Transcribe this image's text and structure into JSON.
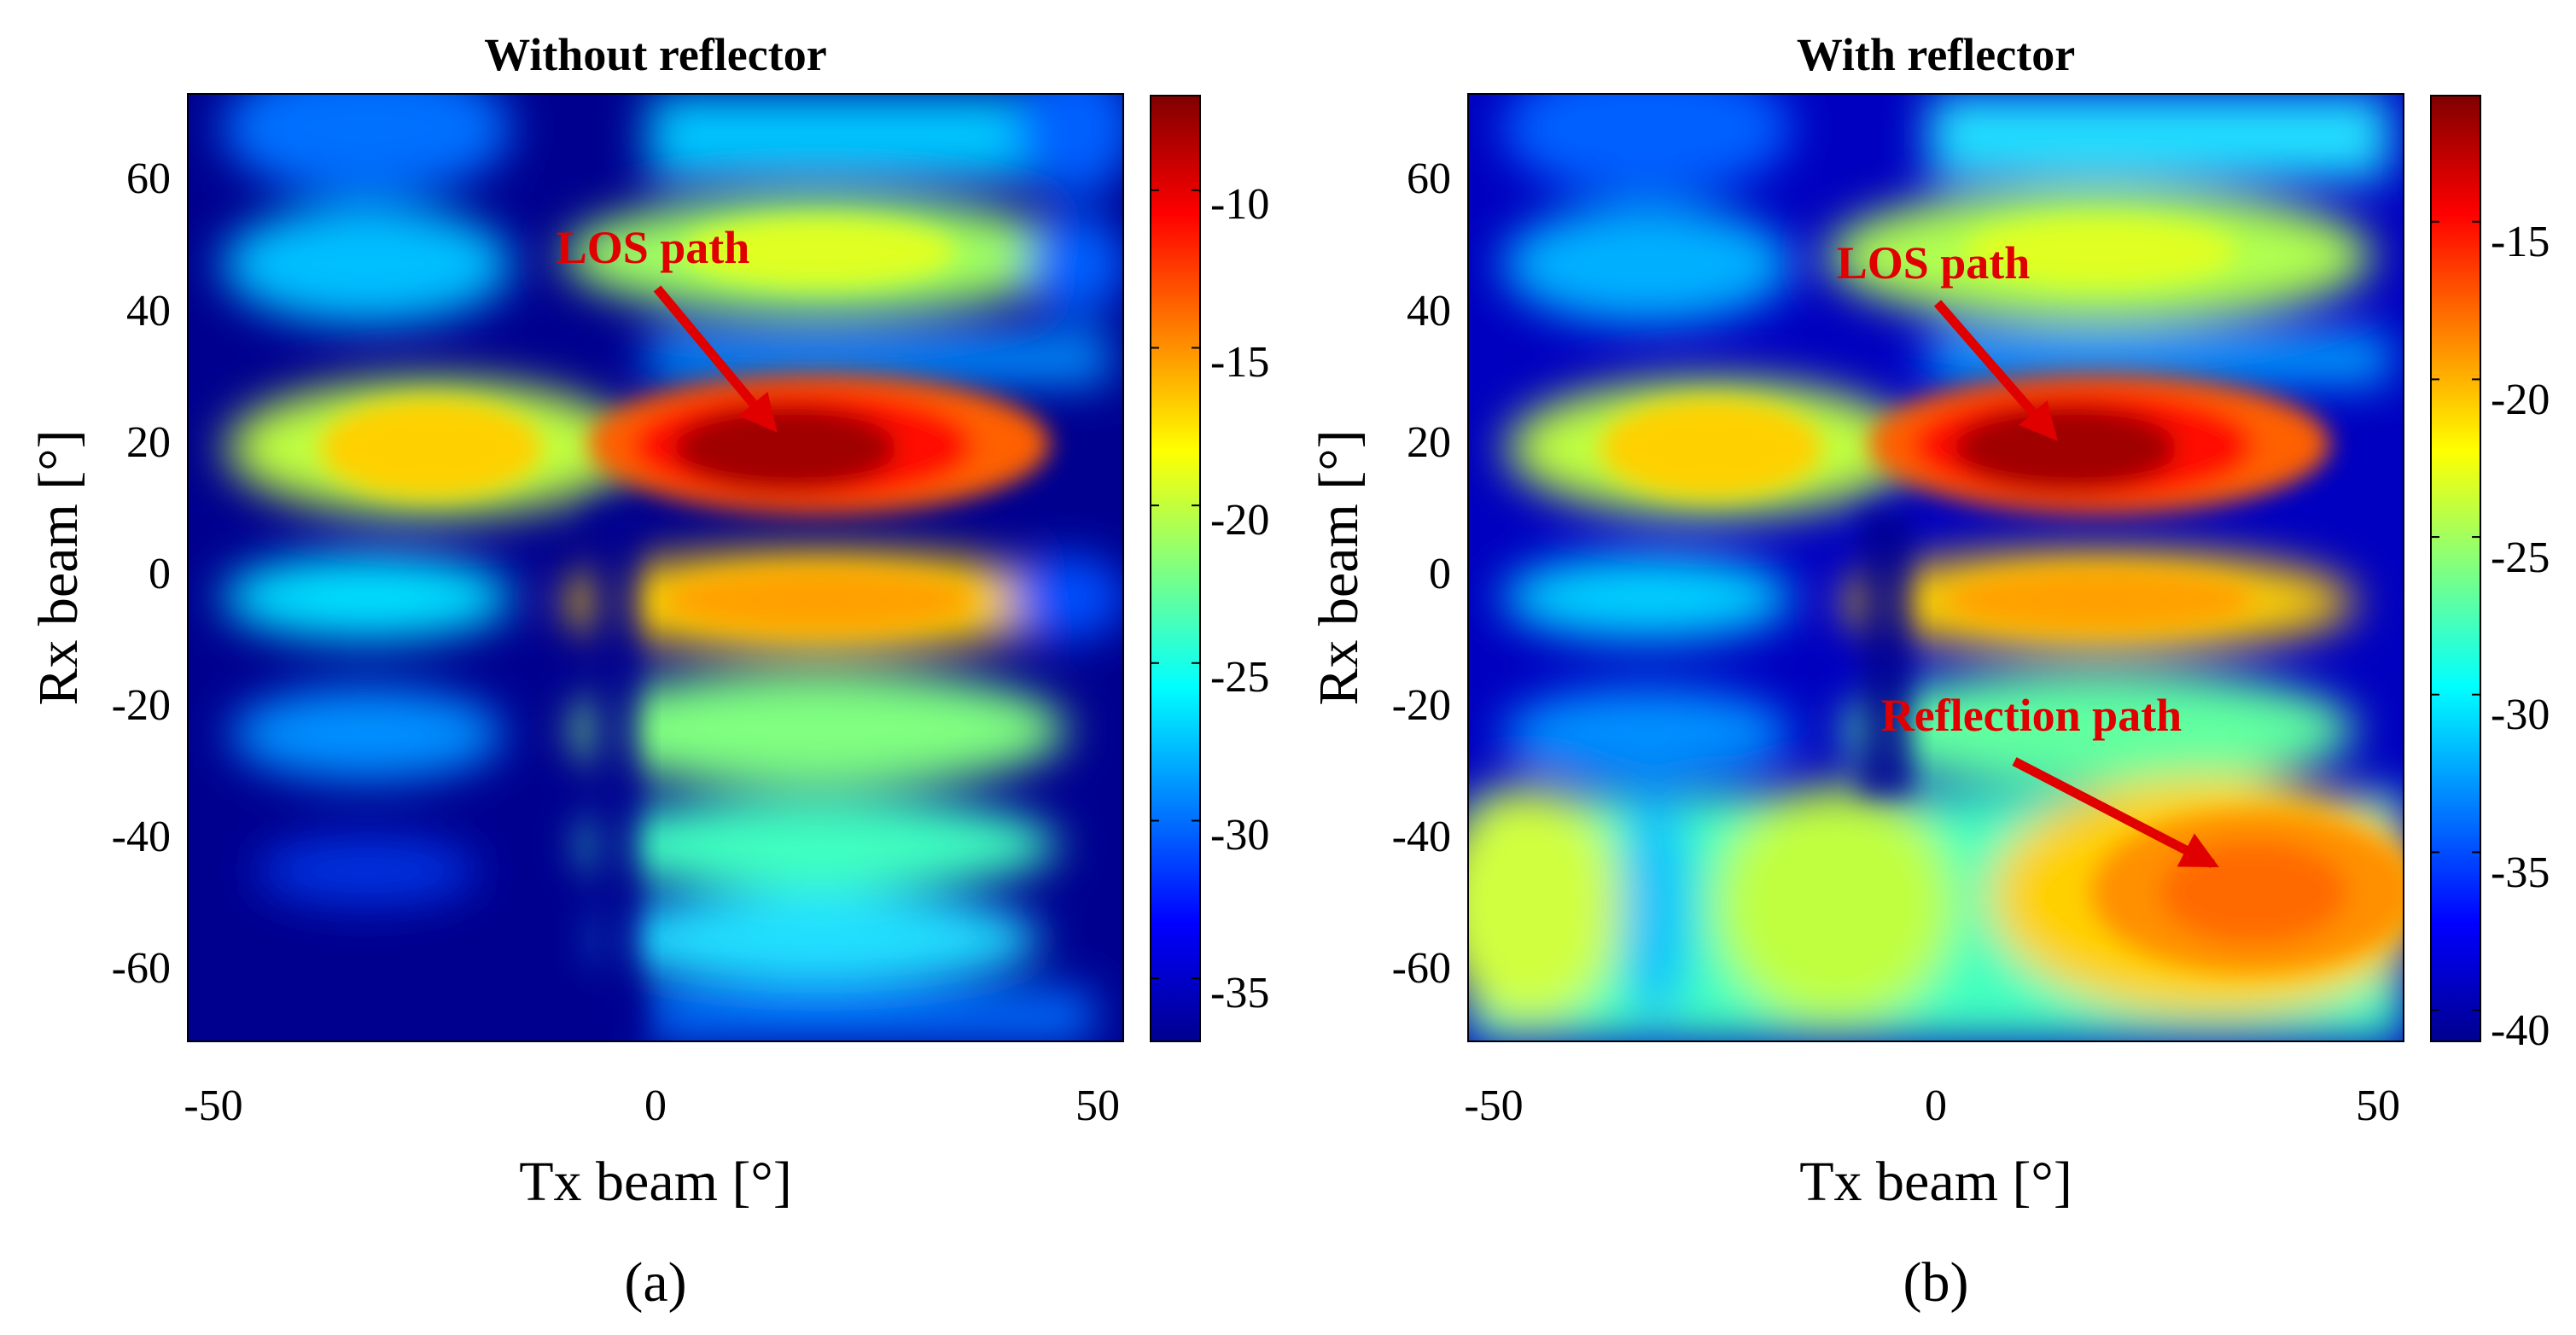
{
  "colors": {
    "annotation": "#e00000",
    "axis": "#000000",
    "colormap": [
      "#00008f",
      "#0000ff",
      "#0080ff",
      "#00ffff",
      "#80ff80",
      "#ffff00",
      "#ff8000",
      "#ff0000",
      "#800000"
    ]
  },
  "chart_data": [
    {
      "type": "heatmap",
      "title": "Without reflector",
      "panel_label": "(a)",
      "xlabel": "Tx beam [°]",
      "ylabel": "Rx beam [°]",
      "xlim": [
        -55,
        52
      ],
      "ylim": [
        -72,
        72
      ],
      "xticks": [
        -50,
        0,
        50
      ],
      "xtick_labels": [
        "-50",
        "0",
        "50"
      ],
      "yticks": [
        60,
        40,
        20,
        0,
        -20,
        -40,
        -60
      ],
      "ytick_labels": [
        "60",
        "40",
        "20",
        "0",
        "-20",
        "-40",
        "-60"
      ],
      "colorbar": {
        "range": [
          -37,
          -7
        ],
        "ticks": [
          -10,
          -15,
          -20,
          -25,
          -30,
          -35
        ],
        "tick_labels": [
          "-10",
          "-15",
          "-20",
          "-25",
          "-30",
          "-35"
        ]
      },
      "features": [
        {
          "tx": 14,
          "rx": 18,
          "value": -8,
          "note": "LOS peak"
        },
        {
          "tx": 14,
          "rx": -5,
          "value": -17
        },
        {
          "tx": -26,
          "rx": 18,
          "value": -18
        },
        {
          "tx": 14,
          "rx": 45,
          "value": -21
        },
        {
          "tx": 14,
          "rx": -25,
          "value": -22
        },
        {
          "tx": -26,
          "rx": -5,
          "value": -27
        }
      ],
      "annotations": [
        {
          "text": "LOS path",
          "points_to": {
            "tx": 14,
            "rx": 18
          }
        }
      ]
    },
    {
      "type": "heatmap",
      "title": "With reflector",
      "panel_label": "(b)",
      "xlabel": "Tx beam [°]",
      "ylabel": "Rx beam [°]",
      "xlim": [
        -55,
        52
      ],
      "ylim": [
        -72,
        72
      ],
      "xticks": [
        -50,
        0,
        50
      ],
      "xtick_labels": [
        "-50",
        "0",
        "50"
      ],
      "yticks": [
        60,
        40,
        20,
        0,
        -20,
        -40,
        -60
      ],
      "ytick_labels": [
        "60",
        "40",
        "20",
        "0",
        "-20",
        "-40",
        "-60"
      ],
      "colorbar": {
        "range": [
          -41,
          -11
        ],
        "ticks": [
          -15,
          -20,
          -25,
          -30,
          -35,
          -40
        ],
        "tick_labels": [
          "-15",
          "-20",
          "-25",
          "-30",
          "-35",
          "-40"
        ]
      },
      "features": [
        {
          "tx": 14,
          "rx": 18,
          "value": -12,
          "note": "LOS peak"
        },
        {
          "tx": 32,
          "rx": -45,
          "value": -19,
          "note": "Reflection peak"
        },
        {
          "tx": 14,
          "rx": -5,
          "value": -21
        },
        {
          "tx": -26,
          "rx": 18,
          "value": -22
        },
        {
          "tx": -48,
          "rx": -45,
          "value": -24
        },
        {
          "tx": -12,
          "rx": -45,
          "value": -24
        }
      ],
      "annotations": [
        {
          "text": "LOS path",
          "points_to": {
            "tx": 14,
            "rx": 18
          }
        },
        {
          "text": "Reflection path",
          "points_to": {
            "tx": 32,
            "rx": -45
          }
        }
      ]
    }
  ]
}
